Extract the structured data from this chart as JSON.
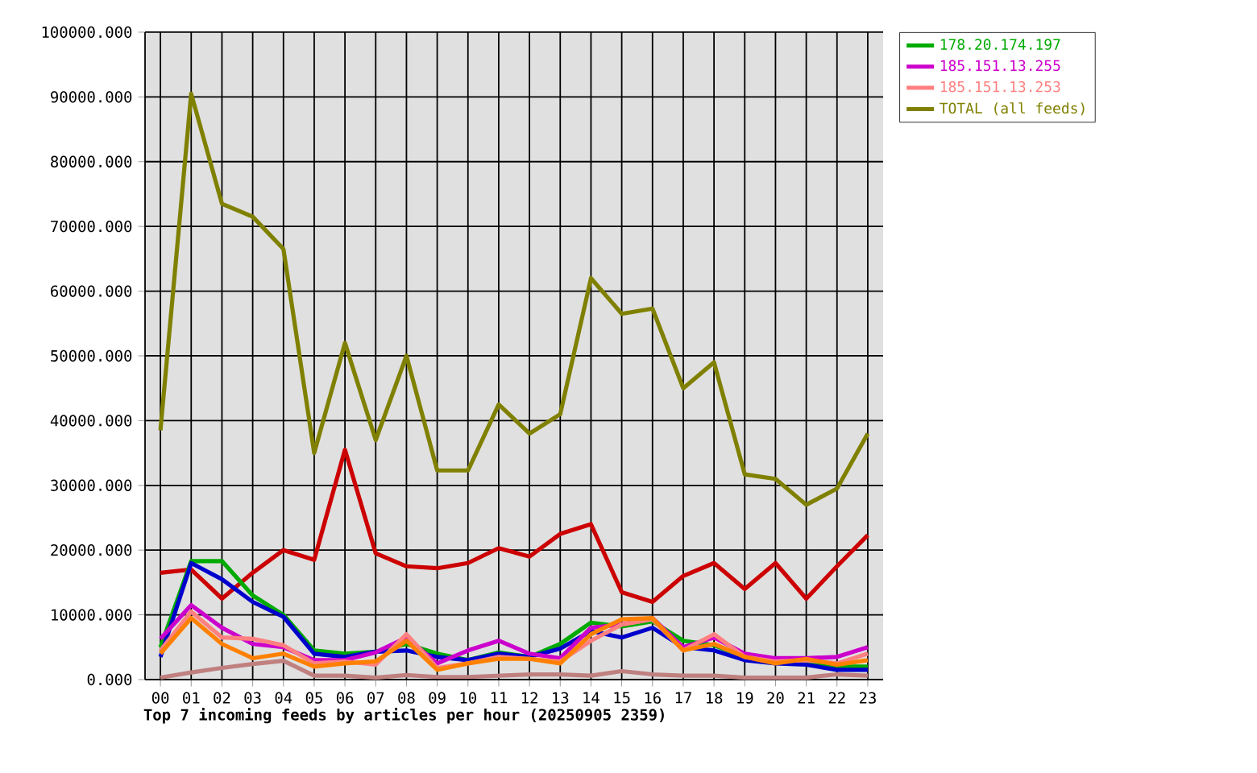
{
  "chart_data": {
    "type": "line",
    "title": "Top 7 incoming feeds by articles per hour (20250905 2359)",
    "categories": [
      "00",
      "01",
      "02",
      "03",
      "04",
      "05",
      "06",
      "07",
      "08",
      "09",
      "10",
      "11",
      "12",
      "13",
      "14",
      "15",
      "16",
      "17",
      "18",
      "19",
      "20",
      "21",
      "22",
      "23"
    ],
    "series": [
      {
        "color": "#cc0000",
        "values": [
          16500,
          17000,
          12500,
          16500,
          20000,
          18500,
          35500,
          19500,
          17500,
          17200,
          18000,
          20300,
          19000,
          22500,
          24000,
          13500,
          12000,
          16000,
          18000,
          14000,
          18000,
          12500,
          17500,
          22300
        ]
      },
      {
        "name": "178.20.174.197",
        "color": "#00aa00",
        "values": [
          5000,
          18300,
          18300,
          13000,
          10000,
          4500,
          4000,
          4300,
          5500,
          4000,
          3000,
          4200,
          3500,
          5500,
          8800,
          8200,
          9000,
          6000,
          5300,
          3500,
          null,
          2500,
          2000,
          2000
        ]
      },
      {
        "color": "#0000cc",
        "values": [
          3500,
          18000,
          15500,
          12000,
          9700,
          4000,
          3500,
          4300,
          4500,
          3500,
          3000,
          4000,
          3500,
          4800,
          7500,
          6500,
          8000,
          5000,
          4500,
          3000,
          2500,
          2300,
          1500,
          1500
        ]
      },
      {
        "name": "185.151.13.255",
        "color": "#cc00cc",
        "values": [
          6300,
          11500,
          8000,
          5500,
          5000,
          3000,
          3000,
          4200,
          6500,
          2500,
          4500,
          6000,
          4000,
          3300,
          8000,
          8500,
          9500,
          5000,
          6500,
          4000,
          3300,
          3300,
          3500,
          5000
        ]
      },
      {
        "name": "185.151.13.253",
        "color": "#ff8080",
        "values": [
          4500,
          10500,
          6500,
          6300,
          5300,
          2500,
          2800,
          2300,
          7000,
          1800,
          2500,
          3500,
          3200,
          2800,
          6000,
          8500,
          9300,
          4500,
          7000,
          3500,
          2800,
          3000,
          2500,
          4000
        ]
      },
      {
        "color": "#ff8000",
        "values": [
          4000,
          9500,
          5500,
          3300,
          4000,
          2000,
          2500,
          2800,
          6000,
          1500,
          2500,
          3200,
          3200,
          2500,
          7000,
          9300,
          9500,
          4500,
          5500,
          3500,
          2500,
          3200,
          2300,
          3000
        ]
      },
      {
        "color": "#c08080",
        "values": [
          300,
          1100,
          1800,
          2400,
          2900,
          600,
          600,
          300,
          700,
          400,
          400,
          600,
          800,
          800,
          600,
          1300,
          800,
          600,
          600,
          300,
          300,
          300,
          800,
          600
        ]
      },
      {
        "name": "TOTAL (all feeds)",
        "color": "#808000",
        "values": [
          38500,
          90500,
          73500,
          71500,
          66500,
          35000,
          52000,
          37000,
          50000,
          32300,
          32300,
          42500,
          38000,
          41000,
          62000,
          56500,
          57300,
          45000,
          49000,
          31700,
          31000,
          27000,
          29500,
          38000
        ]
      }
    ],
    "ylim": [
      0,
      100000
    ],
    "yticks": [
      {
        "value": 0,
        "label": "0.000"
      },
      {
        "value": 10000,
        "label": "10000.000"
      },
      {
        "value": 20000,
        "label": "20000.000"
      },
      {
        "value": 30000,
        "label": "30000.000"
      },
      {
        "value": 40000,
        "label": "40000.000"
      },
      {
        "value": 50000,
        "label": "50000.000"
      },
      {
        "value": 60000,
        "label": "60000.000"
      },
      {
        "value": 70000,
        "label": "70000.000"
      },
      {
        "value": 80000,
        "label": "80000.000"
      },
      {
        "value": 90000,
        "label": "90000.000"
      },
      {
        "value": 100000,
        "label": "100000.000"
      }
    ],
    "grid": true,
    "legend": "top right",
    "marker": "none",
    "line_style": "solid"
  }
}
